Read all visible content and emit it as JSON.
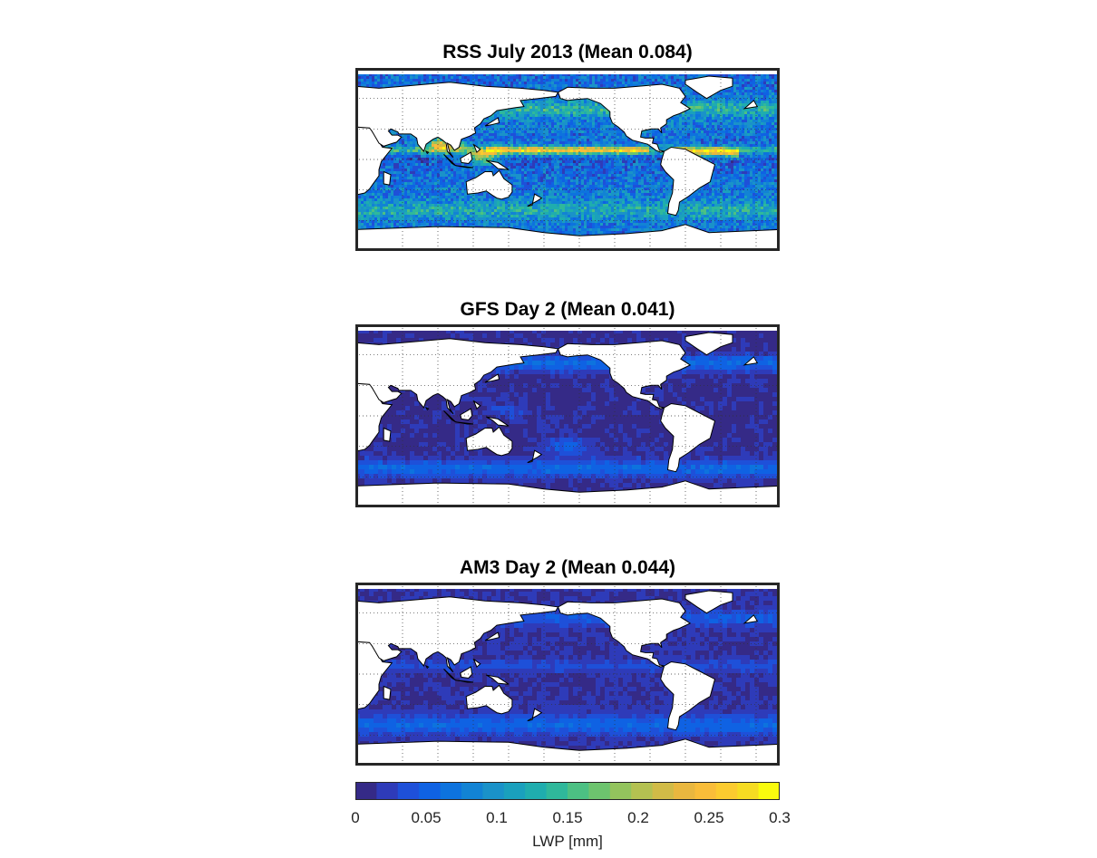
{
  "panels": [
    {
      "title": "RSS July 2013 (Mean 0.084)",
      "mean": 0.084,
      "style": "rss"
    },
    {
      "title": "GFS Day 2 (Mean 0.041)",
      "mean": 0.041,
      "style": "gfs"
    },
    {
      "title": "AM3 Day 2 (Mean 0.044)",
      "mean": 0.044,
      "style": "am3"
    }
  ],
  "colorbar": {
    "label": "LWP [mm]",
    "ticks": [
      "0",
      "0.05",
      "0.1",
      "0.15",
      "0.2",
      "0.25",
      "0.3"
    ],
    "range": [
      0,
      0.3
    ],
    "colors": [
      "#352a87",
      "#2e3bb9",
      "#1e50d9",
      "#0f62e3",
      "#0d73de",
      "#1283d4",
      "#1a92c9",
      "#1aa0bd",
      "#1fadae",
      "#2fb89b",
      "#4cc083",
      "#6dc46e",
      "#93c45d",
      "#b4c151",
      "#d1bb47",
      "#e9b73f",
      "#f9bd39",
      "#fbcb2f",
      "#f6dc22",
      "#f9fb0e"
    ]
  }
}
